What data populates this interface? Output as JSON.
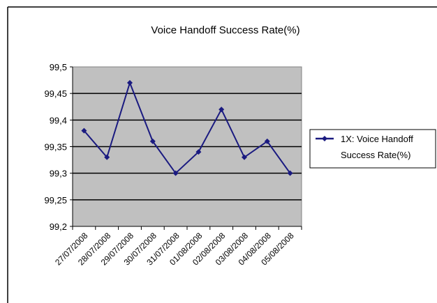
{
  "chart_data": {
    "type": "line",
    "title": "Voice Handoff Success Rate(%)",
    "xlabel": "",
    "ylabel": "",
    "categories": [
      "27/07/2008",
      "28/07/2008",
      "29/07/2008",
      "30/07/2008",
      "31/07/2008",
      "01/08/2008",
      "02/08/2008",
      "03/08/2008",
      "04/08/2008",
      "05/08/2008"
    ],
    "series": [
      {
        "name": "1X: Voice Handoff Success Rate(%)",
        "legend_lines": [
          "1X: Voice Handoff",
          "Success Rate(%)"
        ],
        "values": [
          99.38,
          99.33,
          99.47,
          99.36,
          99.3,
          99.34,
          99.42,
          99.33,
          99.36,
          99.3
        ],
        "color": "#1a1a80",
        "marker": "diamond"
      }
    ],
    "ylim": [
      99.2,
      99.5
    ],
    "y_ticks": [
      {
        "value": 99.5,
        "label": "99,5"
      },
      {
        "value": 99.45,
        "label": "99,45"
      },
      {
        "value": 99.4,
        "label": "99,4"
      },
      {
        "value": 99.35,
        "label": "99,35"
      },
      {
        "value": 99.3,
        "label": "99,3"
      },
      {
        "value": 99.25,
        "label": "99,25"
      },
      {
        "value": 99.2,
        "label": "99,2"
      }
    ],
    "grid": true,
    "plot_background": "#c0c0c0",
    "legend_position": "right"
  }
}
